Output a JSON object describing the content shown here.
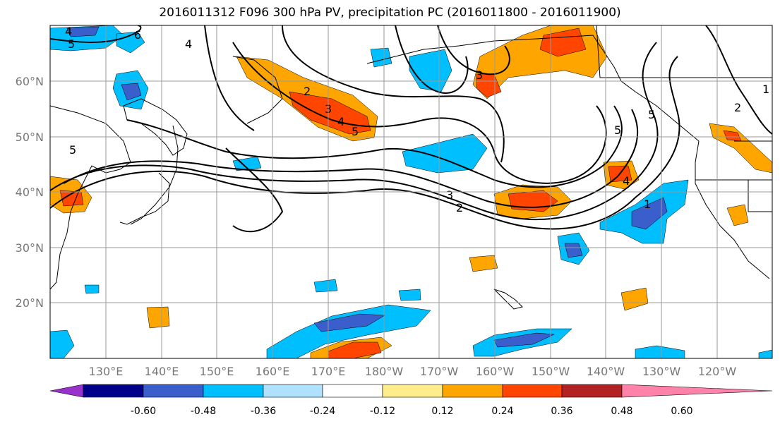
{
  "title": "2016011312 F096 300 hPa PV, precipitation PC (2016011800 - 2016011900)",
  "lat_labels": [
    "60°N",
    "50°N",
    "40°N",
    "30°N",
    "20°N"
  ],
  "lon_labels": [
    "130°E",
    "140°E",
    "150°E",
    "160°E",
    "170°E",
    "180°W",
    "170°W",
    "160°W",
    "150°W",
    "140°W",
    "130°W",
    "120°W"
  ],
  "contour_labels": [
    "4",
    "5",
    "6",
    "4",
    "2",
    "3",
    "4",
    "5",
    "5",
    "3",
    "2",
    "1",
    "5",
    "2",
    "1",
    "4",
    "3",
    "5"
  ],
  "colorbar": {
    "tick_labels": [
      "-0.60",
      "-0.48",
      "-0.36",
      "-0.24",
      "-0.12",
      "0.12",
      "0.24",
      "0.36",
      "0.48",
      "0.60"
    ],
    "colors": [
      "#9932CC",
      "#00008B",
      "#3A5FCD",
      "#00BFFF",
      "#B0E2FF",
      "#FFFFFF",
      "#FFEC8B",
      "#FFA500",
      "#FF4500",
      "#B22222",
      "#FF82AB"
    ]
  },
  "palette": {
    "deep_blue": "#3A5FCD",
    "light_blue": "#00BFFF",
    "pale_blue": "#B0E2FF",
    "pale_yellow": "#FFEC8B",
    "orange": "#FFA500",
    "red_orange": "#FF4500"
  }
}
